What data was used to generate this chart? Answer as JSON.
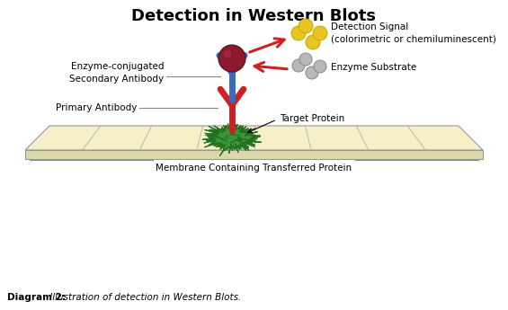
{
  "title": "Detection in Western Blots",
  "title_fontsize": 13,
  "caption_bold": "Diagram 2:",
  "caption_italic": " Illustration of detection in Western Blots.",
  "label_enzyme_conjugated": "Enzyme-conjugated\nSecondary Antibody",
  "label_primary_antibody": "Primary Antibody",
  "label_target_protein": "Target Protein",
  "label_detection_signal": "Detection Signal\n(colorimetric or chemiluminescent)",
  "label_enzyme_substrate": "Enzyme Substrate",
  "label_membrane": "Membrane Containing Transferred Protein",
  "color_background": "#ffffff",
  "color_membrane_top": "#f5f0c8",
  "color_membrane_front": "#ddd8aa",
  "color_membrane_edge": "#999999",
  "color_blue_antibody": "#3a6bbf",
  "color_red_antibody": "#cc2222",
  "color_enzyme_ball": "#8b1a2e",
  "color_yellow_dots": "#e8c420",
  "color_gray_dots": "#b8b8b8",
  "color_green_protein": "#2a8a2a",
  "color_arrow_red": "#cc2222",
  "color_text": "#000000",
  "color_line_gray": "#888888",
  "fig_width": 5.65,
  "fig_height": 3.45,
  "dpi": 100
}
